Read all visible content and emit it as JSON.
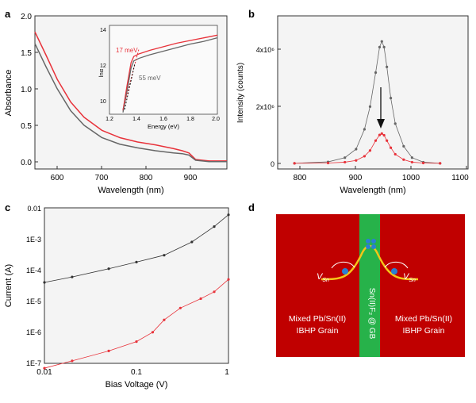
{
  "panels": {
    "a": {
      "letter": "a",
      "chart_data": {
        "type": "line",
        "xlabel": "Wavelength (nm)",
        "ylabel": "Absorbance",
        "xlim": [
          550,
          980
        ],
        "ylim": [
          -0.1,
          2.0
        ],
        "xticks": [
          "600",
          "700",
          "800",
          "900"
        ],
        "yticks": [
          "0.0",
          "0.5",
          "1.0",
          "1.5",
          "2.0"
        ],
        "series": [
          {
            "color": "#e8323a",
            "x": [
              550,
              575,
              600,
              630,
              660,
              700,
              740,
              780,
              820,
              860,
              880,
              895,
              910,
              940,
              980
            ],
            "y": [
              1.78,
              1.46,
              1.13,
              0.82,
              0.61,
              0.43,
              0.33,
              0.27,
              0.23,
              0.18,
              0.15,
              0.12,
              0.03,
              0.01,
              0.01
            ]
          },
          {
            "color": "#666666",
            "x": [
              550,
              575,
              600,
              630,
              660,
              700,
              740,
              780,
              820,
              860,
              880,
              895,
              910,
              940,
              980
            ],
            "y": [
              1.62,
              1.3,
              1.0,
              0.7,
              0.5,
              0.33,
              0.24,
              0.19,
              0.15,
              0.12,
              0.11,
              0.09,
              0.02,
              0.0,
              0.0
            ]
          }
        ]
      },
      "inset": {
        "xlabel": "Energy (eV)",
        "ylabel": "lnα",
        "xticks": [
          "1.2",
          "1.4",
          "1.6",
          "1.8",
          "2.0"
        ],
        "yticks": [
          "10",
          "12",
          "14"
        ],
        "xlim": [
          1.2,
          2.0
        ],
        "ylim": [
          9,
          14
        ],
        "annotation_red": "17 meV",
        "annotation_gray": "55 meV",
        "series": [
          {
            "color": "#e8323a",
            "x": [
              1.3,
              1.33,
              1.36,
              1.38,
              1.42,
              1.5,
              1.6,
              1.7,
              1.8,
              1.9,
              2.0
            ],
            "y": [
              9.2,
              10.6,
              11.9,
              12.25,
              12.4,
              12.6,
              12.8,
              13.0,
              13.15,
              13.3,
              13.45
            ]
          },
          {
            "color": "#666666",
            "x": [
              1.3,
              1.33,
              1.36,
              1.38,
              1.42,
              1.5,
              1.6,
              1.7,
              1.8,
              1.9,
              2.0
            ],
            "y": [
              9.1,
              10.3,
              11.6,
              12.0,
              12.15,
              12.35,
              12.55,
              12.75,
              12.95,
              13.1,
              13.3
            ]
          }
        ]
      }
    },
    "b": {
      "letter": "b",
      "chart_data": {
        "type": "line",
        "xlabel": "Wavelength (nm)",
        "ylabel": "Intensity (counts)",
        "xlim": [
          760,
          1100
        ],
        "ylim": [
          -200000,
          5200000
        ],
        "xticks": [
          "800",
          "900",
          "1000",
          "1100"
        ],
        "yticks": [
          "0",
          "2x10⁶",
          "4x10⁶"
        ],
        "series": [
          {
            "color": "#666666",
            "x": [
              790,
              850,
              880,
              900,
              915,
              925,
              935,
              942,
              946,
              950,
              955,
              962,
              970,
              985,
              1000,
              1020,
              1050
            ],
            "y": [
              0,
              50000,
              200000,
              500000,
              1200000,
              2000000,
              3200000,
              4100000,
              4300000,
              4100000,
              3400000,
              2300000,
              1400000,
              600000,
              200000,
              40000,
              0
            ]
          },
          {
            "color": "#e8323a",
            "x": [
              790,
              850,
              880,
              900,
              915,
              925,
              935,
              942,
              946,
              950,
              955,
              962,
              970,
              985,
              1000,
              1020,
              1050
            ],
            "y": [
              0,
              10000,
              40000,
              100000,
              250000,
              450000,
              800000,
              1000000,
              1050000,
              990000,
              800000,
              550000,
              320000,
              130000,
              40000,
              10000,
              0
            ]
          }
        ]
      }
    },
    "c": {
      "letter": "c",
      "chart_data": {
        "type": "scatter",
        "xlabel": "Bias Voltage (V)",
        "ylabel": "Current (A)",
        "log_x": true,
        "log_y": true,
        "xlim": [
          0.01,
          1
        ],
        "ylim": [
          1e-07,
          0.01
        ],
        "xticks": [
          "0.01",
          "0.1",
          "1"
        ],
        "yticks": [
          "1E-7",
          "1E-6",
          "1E-5",
          "1E-4",
          "1E-3",
          "0.01"
        ],
        "series": [
          {
            "color": "#333333",
            "x": [
              0.01,
              0.02,
              0.05,
              0.1,
              0.2,
              0.4,
              0.7,
              1.0
            ],
            "y": [
              4e-05,
              6e-05,
              0.00011,
              0.00018,
              0.0003,
              0.0008,
              0.0025,
              0.006
            ]
          },
          {
            "color": "#e8323a",
            "x": [
              0.01,
              0.02,
              0.05,
              0.1,
              0.15,
              0.2,
              0.3,
              0.5,
              0.7,
              1.0
            ],
            "y": [
              7e-08,
              1.2e-07,
              2.5e-07,
              5e-07,
              1e-06,
              2.5e-06,
              6e-06,
              1.2e-05,
              2e-05,
              5e-05
            ]
          }
        ]
      }
    },
    "d": {
      "letter": "d",
      "label_left": "Mixed Pb/Sn(II)",
      "label_left2": "IBHP Grain",
      "label_right": "Mixed Pb/Sn(II)",
      "label_right2": "IBHP Grain",
      "vertical_label": "Sn(II)F₂ @ GB",
      "vac_left": "V",
      "vac_right": "V",
      "vac_sub": "Sn",
      "colors": {
        "grain": "#c00000",
        "boundary": "#27b24a",
        "curve": "#f5c518",
        "electron": "#2a7fd4"
      }
    }
  }
}
